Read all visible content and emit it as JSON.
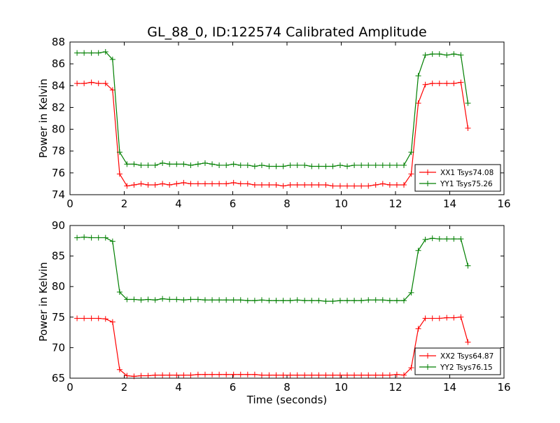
{
  "title": "GL_88_0, ID:122574 Calibrated Amplitude",
  "colors": {
    "red": "#ff0000",
    "green": "#007f00"
  },
  "chart_data": [
    {
      "type": "line",
      "title": "GL_88_0, ID:122574 Calibrated Amplitude",
      "xlabel": "",
      "ylabel": "Power in Kelvin",
      "xlim": [
        0,
        16
      ],
      "ylim": [
        74,
        88
      ],
      "xticks": [
        0,
        2,
        4,
        6,
        8,
        10,
        12,
        14,
        16
      ],
      "yticks": [
        74,
        76,
        78,
        80,
        82,
        84,
        86,
        88
      ],
      "grid": false,
      "legend_position": "lower-right",
      "x": [
        0.26,
        0.52,
        0.79,
        1.05,
        1.31,
        1.57,
        1.83,
        2.1,
        2.36,
        2.62,
        2.88,
        3.14,
        3.41,
        3.67,
        3.93,
        4.19,
        4.45,
        4.72,
        4.98,
        5.24,
        5.5,
        5.76,
        6.03,
        6.29,
        6.55,
        6.81,
        7.07,
        7.34,
        7.6,
        7.86,
        8.12,
        8.38,
        8.65,
        8.91,
        9.17,
        9.43,
        9.69,
        9.96,
        10.22,
        10.48,
        10.74,
        11.0,
        11.27,
        11.53,
        11.79,
        12.05,
        12.31,
        12.58,
        12.84,
        13.1,
        13.36,
        13.62,
        13.89,
        14.15,
        14.41,
        14.67
      ],
      "series": [
        {
          "name": "XX1 Tsys74.08",
          "color": "#ff0000",
          "values": [
            84.2,
            84.2,
            84.3,
            84.2,
            84.2,
            83.6,
            75.9,
            74.8,
            74.9,
            75.0,
            74.9,
            74.9,
            75.0,
            74.9,
            75.0,
            75.1,
            75.0,
            75.0,
            75.0,
            75.0,
            75.0,
            75.0,
            75.1,
            75.0,
            75.0,
            74.9,
            74.9,
            74.9,
            74.9,
            74.8,
            74.9,
            74.9,
            74.9,
            74.9,
            74.9,
            74.9,
            74.8,
            74.8,
            74.8,
            74.8,
            74.8,
            74.8,
            74.9,
            75.0,
            74.9,
            74.9,
            74.9,
            75.9,
            82.4,
            84.1,
            84.2,
            84.2,
            84.2,
            84.2,
            84.3,
            80.1
          ]
        },
        {
          "name": "YY1 Tsys75.26",
          "color": "#007f00",
          "values": [
            87.0,
            87.0,
            87.0,
            87.0,
            87.1,
            86.4,
            77.9,
            76.8,
            76.8,
            76.7,
            76.7,
            76.7,
            76.9,
            76.8,
            76.8,
            76.8,
            76.7,
            76.8,
            76.9,
            76.8,
            76.7,
            76.7,
            76.8,
            76.7,
            76.7,
            76.6,
            76.7,
            76.6,
            76.6,
            76.6,
            76.7,
            76.7,
            76.7,
            76.6,
            76.6,
            76.6,
            76.6,
            76.7,
            76.6,
            76.7,
            76.7,
            76.7,
            76.7,
            76.7,
            76.7,
            76.7,
            76.7,
            77.9,
            84.9,
            86.8,
            86.9,
            86.9,
            86.8,
            86.9,
            86.8,
            82.4
          ]
        }
      ]
    },
    {
      "type": "line",
      "title": "",
      "xlabel": "Time (seconds)",
      "ylabel": "Power in Kelvin",
      "xlim": [
        0,
        16
      ],
      "ylim": [
        65,
        90
      ],
      "xticks": [
        0,
        2,
        4,
        6,
        8,
        10,
        12,
        14,
        16
      ],
      "yticks": [
        65,
        70,
        75,
        80,
        85,
        90
      ],
      "grid": false,
      "legend_position": "lower-right",
      "x": [
        0.26,
        0.52,
        0.79,
        1.05,
        1.31,
        1.57,
        1.83,
        2.1,
        2.36,
        2.62,
        2.88,
        3.14,
        3.41,
        3.67,
        3.93,
        4.19,
        4.45,
        4.72,
        4.98,
        5.24,
        5.5,
        5.76,
        6.03,
        6.29,
        6.55,
        6.81,
        7.07,
        7.34,
        7.6,
        7.86,
        8.12,
        8.38,
        8.65,
        8.91,
        9.17,
        9.43,
        9.69,
        9.96,
        10.22,
        10.48,
        10.74,
        11.0,
        11.27,
        11.53,
        11.79,
        12.05,
        12.31,
        12.58,
        12.84,
        13.1,
        13.36,
        13.62,
        13.89,
        14.15,
        14.41,
        14.67
      ],
      "series": [
        {
          "name": "XX2 Tsys64.87",
          "color": "#ff0000",
          "values": [
            74.8,
            74.8,
            74.8,
            74.8,
            74.7,
            74.2,
            66.4,
            65.4,
            65.3,
            65.4,
            65.4,
            65.5,
            65.5,
            65.5,
            65.5,
            65.5,
            65.5,
            65.6,
            65.6,
            65.6,
            65.6,
            65.6,
            65.6,
            65.6,
            65.6,
            65.6,
            65.5,
            65.5,
            65.5,
            65.5,
            65.5,
            65.5,
            65.5,
            65.5,
            65.5,
            65.5,
            65.5,
            65.5,
            65.5,
            65.5,
            65.5,
            65.5,
            65.5,
            65.5,
            65.5,
            65.6,
            65.5,
            66.7,
            73.1,
            74.8,
            74.8,
            74.8,
            74.9,
            74.9,
            75.0,
            70.9
          ]
        },
        {
          "name": "YY2 Tsys76.15",
          "color": "#007f00",
          "values": [
            88.0,
            88.1,
            88.0,
            88.0,
            88.0,
            87.4,
            79.1,
            77.9,
            77.9,
            77.8,
            77.9,
            77.8,
            78.0,
            77.9,
            77.9,
            77.8,
            77.9,
            77.9,
            77.8,
            77.8,
            77.8,
            77.8,
            77.8,
            77.8,
            77.7,
            77.7,
            77.8,
            77.7,
            77.7,
            77.7,
            77.7,
            77.8,
            77.7,
            77.7,
            77.7,
            77.6,
            77.6,
            77.7,
            77.7,
            77.7,
            77.7,
            77.8,
            77.8,
            77.8,
            77.7,
            77.7,
            77.7,
            79.0,
            85.9,
            87.7,
            87.9,
            87.8,
            87.8,
            87.8,
            87.8,
            83.4
          ]
        }
      ]
    }
  ]
}
